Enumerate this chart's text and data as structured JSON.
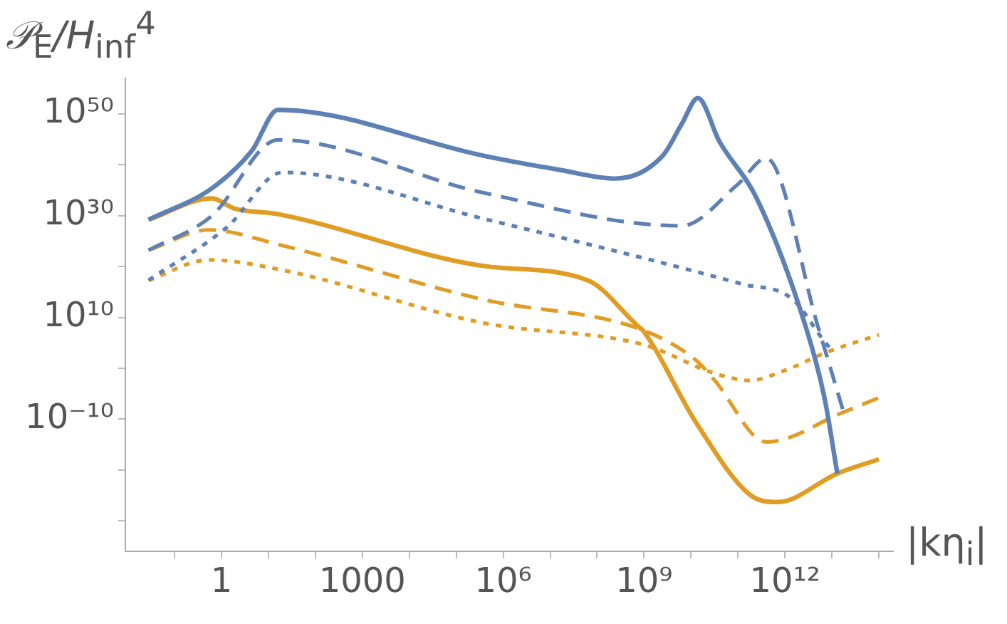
{
  "chart_data": {
    "type": "line",
    "ylabel": "𝒫$_{E}$/H$_{inf}$$^{4}$",
    "xlabel": "|kη$_{i}$|",
    "log": "xy",
    "grid": false,
    "legend": false,
    "marker": "none",
    "xlim": [
      0.009,
      200000000000000.0
    ],
    "xticks": [
      {
        "value": 0.1,
        "label": null
      },
      1,
      {
        "value": 10,
        "label": null
      },
      {
        "value": 100,
        "label": null
      },
      1000,
      {
        "value": 10000.0,
        "label": null
      },
      {
        "value": 100000.0,
        "label": null
      },
      {
        "value": 1000000.0,
        "label": "10⁶"
      },
      {
        "value": 10000000.0,
        "label": null
      },
      {
        "value": 100000000.0,
        "label": null
      },
      {
        "value": 1000000000.0,
        "label": "10⁹"
      },
      {
        "value": 10000000000.0,
        "label": null
      },
      {
        "value": 100000000000.0,
        "label": null
      },
      {
        "value": 1000000000000.0,
        "label": "10¹²"
      },
      {
        "value": 10000000000000.0,
        "label": null
      },
      {
        "value": 100000000000000.0,
        "label": null
      }
    ],
    "ylim": [
      1e-36,
      1e+57
    ],
    "yticks": [
      {
        "value": 1e-30,
        "label": null
      },
      {
        "value": 1e-20,
        "label": null
      },
      {
        "value": 1e-10,
        "label": "10⁻¹⁰"
      },
      {
        "value": 1,
        "label": null
      },
      {
        "value": 10000000000.0,
        "label": "10¹⁰"
      },
      {
        "value": 1e+20,
        "label": null
      },
      {
        "value": 1e+30,
        "label": "10³⁰"
      },
      {
        "value": 1e+40,
        "label": null
      },
      {
        "value": 1e+50,
        "label": "10⁵⁰"
      }
    ],
    "series": [
      {
        "color": "#5e81b5",
        "line_style": "solid",
        "x": [
          0.028,
          0.63,
          4.4,
          16,
          380000.0,
          16000000.0,
          250000000.0,
          2500000000.0,
          6300000000.0,
          14000000000.0,
          40000000000.0,
          250000000000.0,
          2800000000000.0,
          7000000000000.0,
          13000000000000.0
        ],
        "values": [
          1.6e+29,
          2.5e+35,
          5e+42,
          6.3e+50,
          6.3e+41,
          1e+39,
          2e+37,
          6.3e+41,
          1e+48,
          1.3e+53,
          4e+44,
          2.5e+33,
          100000000.0,
          1e-06,
          2e-21
        ]
      },
      {
        "color": "#5e81b5",
        "line_style": "dashed",
        "x": [
          0.028,
          0.63,
          16,
          380000.0,
          6300000000.0,
          100000000000.0,
          400000000000.0,
          5000000000000.0,
          18000000000000.0
        ],
        "values": [
          1.6e+23,
          1e+30,
          8e+44,
          3.2e+34,
          1e+28,
          1.6e+36,
          2e+41,
          200000000.0,
          1.3e-09
        ]
      },
      {
        "color": "#5e81b5",
        "line_style": "dotted",
        "x": [
          0.028,
          1.3,
          20,
          380000.0,
          130000000000.0,
          1400000000000.0,
          7000000000000.0,
          10000000000000.0
        ],
        "values": [
          2e+17,
          5e+27,
          3.2e+38,
          2.5e+29,
          3.2e+16,
          50000000000000.0,
          160000.0,
          3200.0
        ]
      },
      {
        "color": "#e19c24",
        "line_style": "solid",
        "x": [
          0.028,
          0.63,
          1.9,
          16,
          380000.0,
          63000000.0,
          800000000.0,
          930000000.0,
          13000000000.0,
          180000000000.0,
          700000000000.0,
          13000000000000.0,
          100000000000000.0
        ],
        "values": [
          1.6e+29,
          2.5e+33,
          2.5e+31,
          2e+30,
          1.3e+20,
          2e+17,
          100000000.0,
          32000000.0,
          1.6e-11,
          1.3e-25,
          5e-27,
          2e-21,
          1.3e-18
        ]
      },
      {
        "color": "#e19c24",
        "line_style": "dashed",
        "x": [
          0.028,
          0.54,
          20,
          380000.0,
          930000000.0,
          13000000000.0,
          32000000000.0,
          400000000000.0,
          18000000000000.0,
          100000000000000.0
        ],
        "values": [
          1.6e+23,
          1.6e+27,
          1.3e+24,
          32000000000000.0,
          32000000.0,
          32,
          0.004,
          3.2e-15,
          2.5e-09,
          1.6e-06
        ]
      },
      {
        "color": "#e19c24",
        "line_style": "dotted",
        "x": [
          0.028,
          0.54,
          20,
          380000.0,
          1000000000.0,
          32000000000.0,
          180000000000.0,
          1000000000000.0,
          8000000000000.0,
          100000000000000.0
        ],
        "values": [
          2e+17,
          2e+21,
          2e+19,
          800000000.0,
          40000.0,
          0.1,
          0.004,
          0.4,
          1600.0,
          4000000.0
        ]
      }
    ]
  }
}
